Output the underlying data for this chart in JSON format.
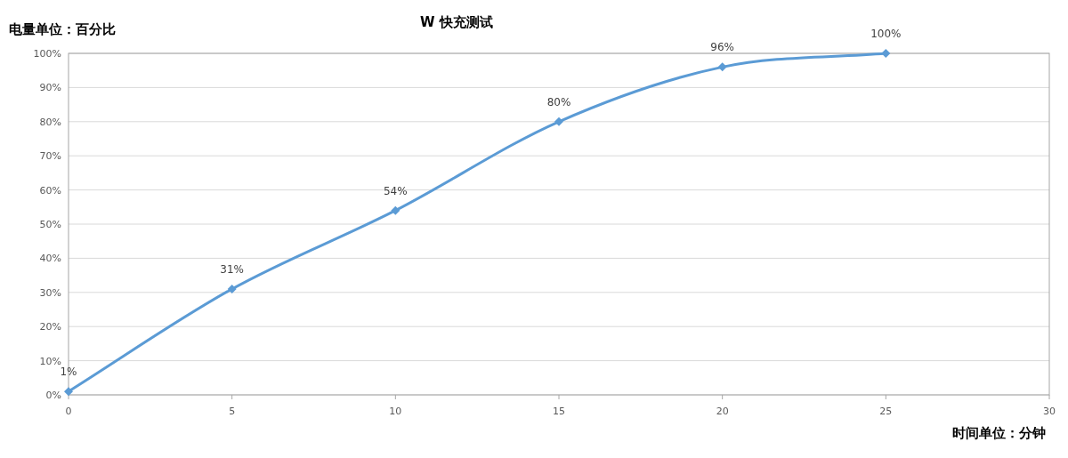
{
  "chart_data": {
    "type": "line",
    "title": "W 快充测试",
    "ylabel": "电量单位：百分比",
    "xlabel": "时间单位：分钟",
    "x": [
      0,
      5,
      10,
      15,
      20,
      25
    ],
    "series": [
      {
        "color": "#5b9bd5",
        "values": [
          1,
          31,
          54,
          80,
          96,
          100
        ],
        "value_labels": [
          "1%",
          "31%",
          "54%",
          "80%",
          "96%",
          "100%"
        ]
      }
    ],
    "xlim": [
      0,
      30
    ],
    "xticks": [
      0,
      5,
      10,
      15,
      20,
      25,
      30
    ],
    "ylim": [
      0,
      100
    ],
    "yticks": [
      {
        "value": 0,
        "label": "0%"
      },
      {
        "value": 10,
        "label": "10%"
      },
      {
        "value": 20,
        "label": "20%"
      },
      {
        "value": 30,
        "label": "30%"
      },
      {
        "value": 40,
        "label": "40%"
      },
      {
        "value": 50,
        "label": "50%"
      },
      {
        "value": 60,
        "label": "60%"
      },
      {
        "value": 70,
        "label": "70%"
      },
      {
        "value": 80,
        "label": "80%"
      },
      {
        "value": 90,
        "label": "90%"
      },
      {
        "value": 100,
        "label": "100%"
      }
    ],
    "grid": "y",
    "marker": "diamond",
    "line_style": "solid"
  }
}
